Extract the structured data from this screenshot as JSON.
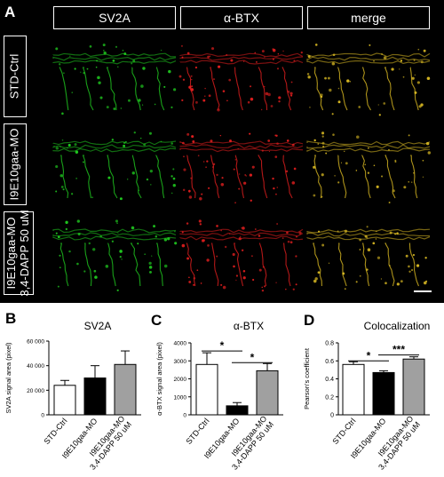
{
  "panelA": {
    "label": "A",
    "columns": [
      "SV2A",
      "α-BTX",
      "merge"
    ],
    "rows": [
      {
        "lines": [
          "STD-Ctrl"
        ]
      },
      {
        "lines": [
          "I9E10gaa-MO"
        ]
      },
      {
        "lines": [
          "I9E10gaa-MO",
          "3,4-DAPP 50 uM"
        ]
      }
    ],
    "colors": {
      "sv2a": "#1fc81f",
      "btx": "#e01e1e",
      "merge": "#d8b822"
    }
  },
  "chart_data": [
    {
      "panel": "B",
      "type": "bar",
      "title": "SV2A",
      "ylabel": "SV2A signal area (pixel)",
      "ylim": [
        0,
        60000
      ],
      "yticks": [
        "0",
        "20 000",
        "40 000",
        "60 000"
      ],
      "categories": [
        "STD-Ctrl",
        "I9E10gaa-MO",
        "I9E10gaa-MO 3,4-DAPP 50 uM"
      ],
      "values": [
        24000,
        30000,
        41000
      ],
      "errors": [
        4000,
        10000,
        11000
      ],
      "fills": [
        "#ffffff",
        "#000000",
        "#a0a0a0"
      ],
      "significance": []
    },
    {
      "panel": "C",
      "type": "bar",
      "title": "α-BTX",
      "ylabel": "α-BTX signal area (pixel)",
      "ylim": [
        0,
        4000
      ],
      "yticks": [
        "0",
        "1000",
        "2000",
        "3000",
        "4000"
      ],
      "categories": [
        "STD-Ctrl",
        "I9E10gaa-MO",
        "I9E10gaa-MO 3,4-DAPP 50 uM"
      ],
      "values": [
        2800,
        500,
        2450
      ],
      "errors": [
        650,
        180,
        400
      ],
      "fills": [
        "#ffffff",
        "#000000",
        "#a0a0a0"
      ],
      "significance": [
        {
          "from": 0,
          "to": 1,
          "label": "*",
          "y": 3550
        },
        {
          "from": 1,
          "to": 2,
          "label": "*",
          "y": 2900
        }
      ]
    },
    {
      "panel": "D",
      "type": "bar",
      "title": "Colocalization",
      "ylabel": "Pearson's coefficient",
      "ylim": [
        0,
        0.8
      ],
      "yticks": [
        "0",
        "0.2",
        "0.4",
        "0.6",
        "0.8"
      ],
      "categories": [
        "STD-Ctrl",
        "I9E10gaa-MO",
        "I9E10gaa-MO 3,4-DAPP 50 uM"
      ],
      "values": [
        0.56,
        0.47,
        0.62
      ],
      "errors": [
        0.03,
        0.02,
        0.025
      ],
      "fills": [
        "#ffffff",
        "#000000",
        "#a0a0a0"
      ],
      "significance": [
        {
          "from": 0,
          "to": 1,
          "label": "*",
          "y": 0.6
        },
        {
          "from": 1,
          "to": 2,
          "label": "***",
          "y": 0.665
        }
      ]
    }
  ]
}
